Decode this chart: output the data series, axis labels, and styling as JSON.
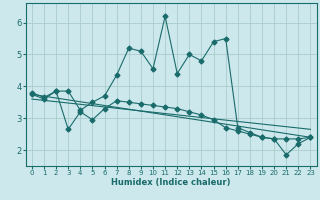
{
  "xlabel": "Humidex (Indice chaleur)",
  "ylabel": "",
  "xlim": [
    -0.5,
    23.5
  ],
  "ylim": [
    1.5,
    6.6
  ],
  "yticks": [
    2,
    3,
    4,
    5,
    6
  ],
  "xticks": [
    0,
    1,
    2,
    3,
    4,
    5,
    6,
    7,
    8,
    9,
    10,
    11,
    12,
    13,
    14,
    15,
    16,
    17,
    18,
    19,
    20,
    21,
    22,
    23
  ],
  "bg_color": "#cce8ec",
  "grid_color": "#aacccc",
  "line_color": "#1a6b6b",
  "line1_x": [
    0,
    1,
    2,
    3,
    4,
    5,
    6,
    7,
    8,
    9,
    10,
    11,
    12,
    13,
    14,
    15,
    16,
    17,
    18,
    19,
    20,
    21,
    22,
    23
  ],
  "line1_y": [
    3.8,
    3.65,
    3.85,
    3.85,
    3.25,
    3.5,
    3.7,
    4.35,
    5.2,
    5.1,
    4.55,
    6.2,
    4.4,
    5.0,
    4.8,
    5.4,
    5.5,
    2.7,
    2.55,
    2.4,
    2.35,
    1.85,
    2.2,
    2.4
  ],
  "line2_x": [
    0,
    1,
    2,
    3,
    4,
    5,
    6,
    7,
    8,
    9,
    10,
    11,
    12,
    13,
    14,
    15,
    16,
    17,
    18,
    19,
    20,
    21,
    22,
    23
  ],
  "line2_y": [
    3.75,
    3.6,
    3.85,
    2.65,
    3.2,
    2.95,
    3.3,
    3.55,
    3.5,
    3.45,
    3.4,
    3.35,
    3.3,
    3.2,
    3.1,
    2.95,
    2.7,
    2.6,
    2.5,
    2.4,
    2.35,
    2.35,
    2.35,
    2.4
  ],
  "line3_x": [
    0,
    23
  ],
  "line3_y": [
    3.75,
    2.4
  ],
  "line4_x": [
    0,
    23
  ],
  "line4_y": [
    3.6,
    2.65
  ],
  "marker": "D",
  "markersize": 2.5
}
